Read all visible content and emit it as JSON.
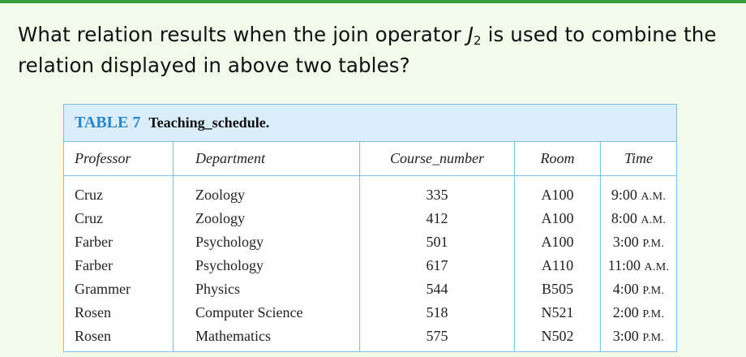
{
  "question": {
    "text_before": "What relation results when the join operator ",
    "symbol": "J",
    "subscript": "2",
    "text_after": " is used to combine the relation displayed in above two tables?"
  },
  "table": {
    "label": "TABLE 7",
    "title": "Teaching_schedule.",
    "columns": [
      "Professor",
      "Department",
      "Course_number",
      "Room",
      "Time"
    ],
    "rows": [
      [
        "Cruz",
        "Zoology",
        "335",
        "A100",
        "9:00 A.M."
      ],
      [
        "Cruz",
        "Zoology",
        "412",
        "A100",
        "8:00 A.M."
      ],
      [
        "Farber",
        "Psychology",
        "501",
        "A100",
        "3:00 P.M."
      ],
      [
        "Farber",
        "Psychology",
        "617",
        "A110",
        "11:00 A.M."
      ],
      [
        "Grammer",
        "Physics",
        "544",
        "B505",
        "4:00 P.M."
      ],
      [
        "Rosen",
        "Computer Science",
        "518",
        "N521",
        "2:00 P.M."
      ],
      [
        "Rosen",
        "Mathematics",
        "575",
        "N502",
        "3:00 P.M."
      ]
    ]
  },
  "colors": {
    "page_background": "#f2fbea",
    "top_rule": "#3a9c3a",
    "caption_background": "#d9eefa",
    "caption_label": "#2b86c5",
    "border": "#7ec0e3"
  }
}
